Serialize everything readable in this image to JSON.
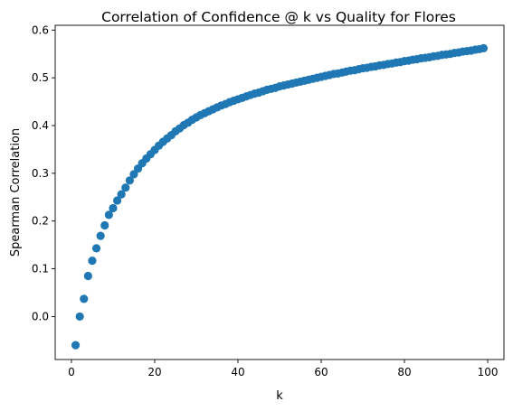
{
  "chart_data": {
    "type": "scatter",
    "title": "Correlation of Confidence @ k vs Quality for Flores",
    "xlabel": "k",
    "ylabel": "Spearman Correlation",
    "xlim": [
      -3.9,
      103.9
    ],
    "ylim": [
      -0.09,
      0.61
    ],
    "xticks": [
      0,
      20,
      40,
      60,
      80,
      100
    ],
    "yticks": [
      0.0,
      0.1,
      0.2,
      0.3,
      0.4,
      0.5,
      0.6
    ],
    "xtick_labels": [
      "0",
      "20",
      "40",
      "60",
      "80",
      "100"
    ],
    "ytick_labels": [
      "0.0",
      "0.1",
      "0.2",
      "0.3",
      "0.4",
      "0.5",
      "0.6"
    ],
    "grid": false,
    "color": "#1f77b4",
    "series": [
      {
        "x": [
          1,
          2,
          3,
          4,
          5,
          6,
          7,
          8,
          9,
          10,
          11,
          12,
          13,
          14,
          15,
          16,
          17,
          18,
          19,
          20,
          21,
          22,
          23,
          24,
          25,
          26,
          27,
          28,
          29,
          30,
          31,
          32,
          33,
          34,
          35,
          36,
          37,
          38,
          39,
          40,
          41,
          42,
          43,
          44,
          45,
          46,
          47,
          48,
          49,
          50,
          51,
          52,
          53,
          54,
          55,
          56,
          57,
          58,
          59,
          60,
          61,
          62,
          63,
          64,
          65,
          66,
          67,
          68,
          69,
          70,
          71,
          72,
          73,
          74,
          75,
          76,
          77,
          78,
          79,
          80,
          81,
          82,
          83,
          84,
          85,
          86,
          87,
          88,
          89,
          90,
          91,
          92,
          93,
          94,
          95,
          96,
          97,
          98,
          99
        ],
        "y": [
          -0.06,
          0.0,
          0.037,
          0.085,
          0.117,
          0.143,
          0.169,
          0.191,
          0.213,
          0.227,
          0.243,
          0.256,
          0.27,
          0.285,
          0.298,
          0.31,
          0.321,
          0.331,
          0.34,
          0.349,
          0.358,
          0.366,
          0.373,
          0.38,
          0.388,
          0.394,
          0.401,
          0.406,
          0.412,
          0.417,
          0.422,
          0.426,
          0.43,
          0.434,
          0.438,
          0.442,
          0.445,
          0.449,
          0.452,
          0.455,
          0.458,
          0.461,
          0.464,
          0.467,
          0.469,
          0.472,
          0.475,
          0.477,
          0.479,
          0.482,
          0.484,
          0.486,
          0.488,
          0.49,
          0.492,
          0.494,
          0.496,
          0.498,
          0.5,
          0.502,
          0.504,
          0.506,
          0.508,
          0.509,
          0.511,
          0.513,
          0.515,
          0.516,
          0.518,
          0.52,
          0.521,
          0.523,
          0.524,
          0.526,
          0.527,
          0.529,
          0.53,
          0.532,
          0.533,
          0.535,
          0.536,
          0.538,
          0.539,
          0.541,
          0.542,
          0.543,
          0.545,
          0.546,
          0.548,
          0.549,
          0.55,
          0.552,
          0.553,
          0.555,
          0.556,
          0.557,
          0.559,
          0.56,
          0.562
        ]
      }
    ]
  }
}
